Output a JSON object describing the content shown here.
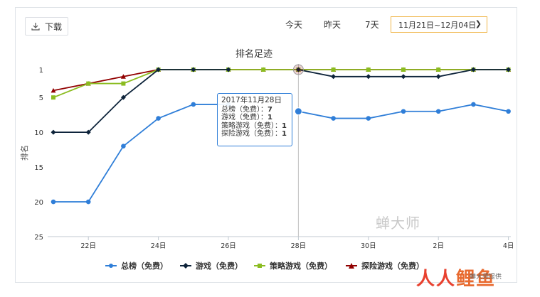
{
  "toolbar": {
    "download_label": "下载",
    "range_today": "今天",
    "range_yesterday": "昨天",
    "range_7days": "7天",
    "date_range": "11月21日~12月04日"
  },
  "chart_data": {
    "type": "line",
    "title": "排名足迹",
    "xlabel": "",
    "ylabel": "排名",
    "x": [
      "11月21日",
      "11月22日",
      "11月23日",
      "11月24日",
      "11月25日",
      "11月26日",
      "11月27日",
      "11月28日",
      "11月29日",
      "11月30日",
      "12月1日",
      "12月2日",
      "12月3日",
      "12月4日"
    ],
    "x_tick_labels": [
      {
        "index": 1,
        "label": "22日"
      },
      {
        "index": 3,
        "label": "24日"
      },
      {
        "index": 5,
        "label": "26日"
      },
      {
        "index": 7,
        "label": "28日"
      },
      {
        "index": 9,
        "label": "30日"
      },
      {
        "index": 11,
        "label": "2日"
      },
      {
        "index": 13,
        "label": "4日"
      }
    ],
    "y_reversed": true,
    "ylim": [
      1,
      25
    ],
    "y_ticks": [
      1,
      5,
      10,
      15,
      20,
      25
    ],
    "grid": false,
    "legend_position": "bottom",
    "series": [
      {
        "name": "总榜（免费）",
        "color": "#2f7ed8",
        "marker": "circle",
        "values": [
          20,
          20,
          12,
          8,
          6,
          6,
          null,
          7,
          8,
          8,
          7,
          7,
          6,
          7
        ]
      },
      {
        "name": "游戏（免费）",
        "color": "#0d233a",
        "marker": "diamond",
        "values": [
          10,
          10,
          5,
          1,
          1,
          1,
          null,
          1,
          2,
          2,
          2,
          2,
          1,
          1
        ]
      },
      {
        "name": "策略游戏（免费）",
        "color": "#8bbc21",
        "marker": "square",
        "values": [
          5,
          3,
          3,
          1,
          1,
          1,
          1,
          1,
          1,
          1,
          1,
          1,
          1,
          1
        ]
      },
      {
        "name": "探险游戏（免费）",
        "color": "#910000",
        "marker": "triangle",
        "values": [
          4,
          3,
          2,
          1,
          1,
          1,
          1,
          1,
          1,
          1,
          1,
          1,
          1,
          1
        ]
      }
    ],
    "tooltip": {
      "title": "2017年11月28日",
      "rows": [
        {
          "label": "总榜（免费）：",
          "value": "7"
        },
        {
          "label": "游戏（免费）：",
          "value": "1"
        },
        {
          "label": "策略游戏（免费）：",
          "value": "1"
        },
        {
          "label": "探险游戏（免费）：",
          "value": "1"
        }
      ]
    }
  },
  "watermark": {
    "text": "蝉大师",
    "brand_logo_part1": "人人",
    "brand_logo_part2": "鲤鱼",
    "brand_small": "蝉大师提供"
  }
}
